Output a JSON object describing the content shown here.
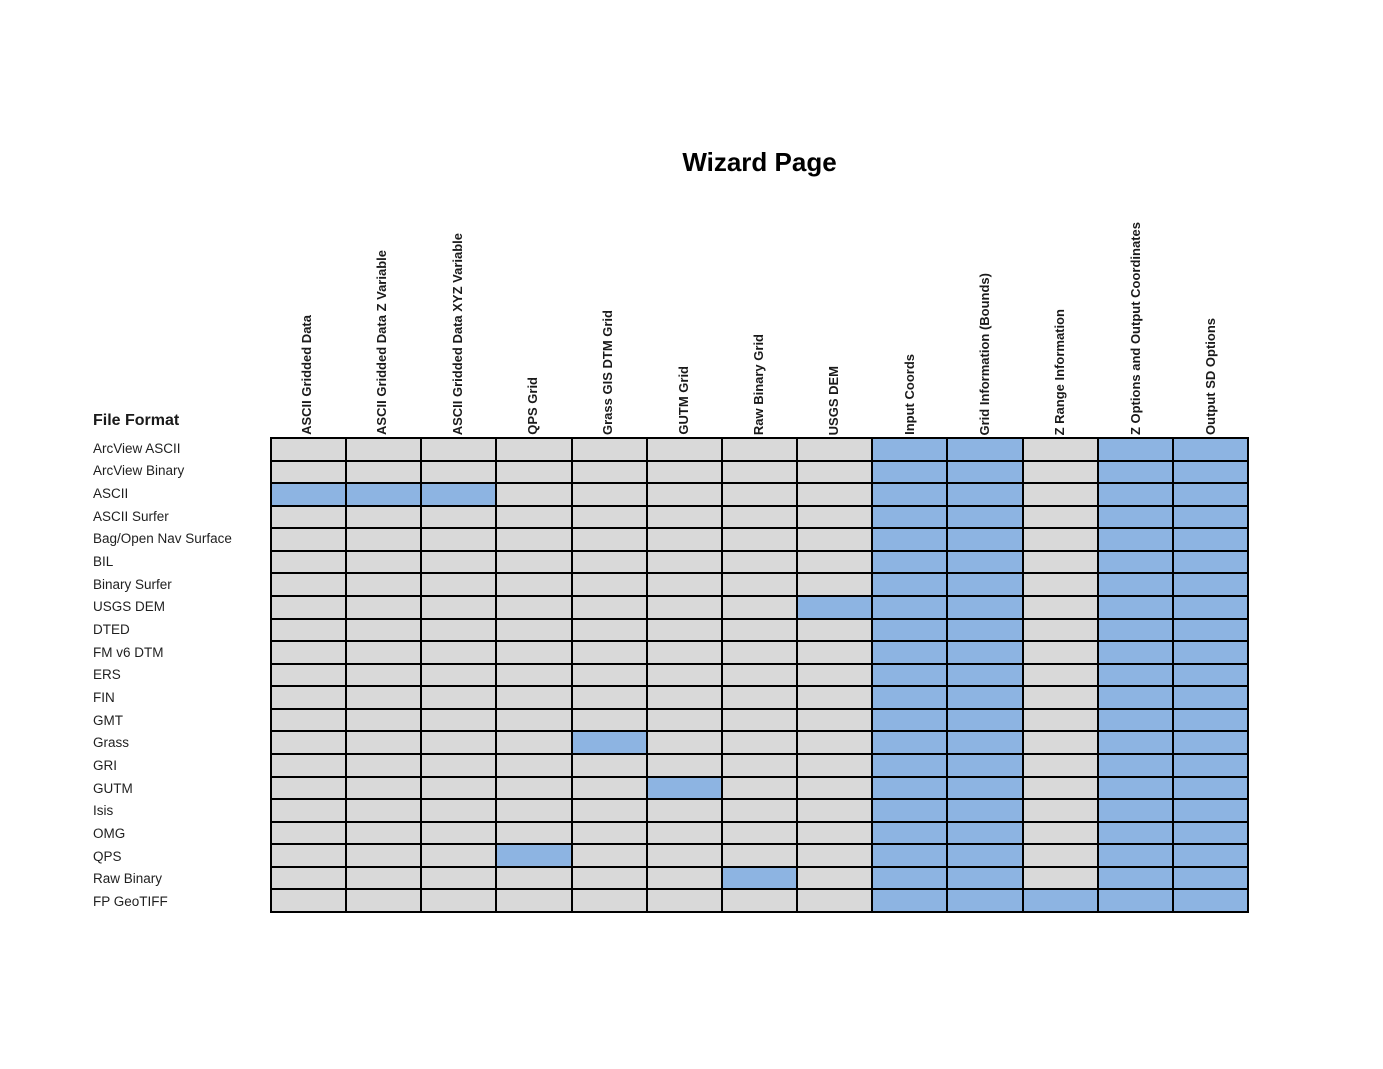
{
  "title": "Wizard Page",
  "row_header_label": "File Format",
  "colors": {
    "applicable_cell": "#8DB4E2",
    "not_applicable_cell": "#D9D9D9",
    "grid_border": "#000000",
    "text": "#1A1A1A",
    "background": "#FFFFFF"
  },
  "chart_data": {
    "type": "heatmap",
    "title": "Wizard Page",
    "xlabel": "",
    "ylabel": "File Format",
    "legend_position": "none",
    "grid": true,
    "x_categories": [
      "ASCII Gridded Data",
      "ASCII Gridded Data Z Variable",
      "ASCII Gridded Data XYZ Variable",
      "QPS Grid",
      "Grass GIS DTM Grid",
      "GUTM Grid",
      "Raw Binary Grid",
      "USGS DEM",
      "Input Coords",
      "Grid Information (Bounds)",
      "Z Range Information",
      "Z Options and Output Coordinates",
      "Output SD Options"
    ],
    "y_categories": [
      "ArcView ASCII",
      "ArcView Binary",
      "ASCII",
      "ASCII Surfer",
      "Bag/Open Nav Surface",
      "BIL",
      "Binary Surfer",
      "USGS DEM",
      "DTED",
      "FM v6 DTM",
      "ERS",
      "FIN",
      "GMT",
      "Grass",
      "GRI",
      "GUTM",
      "Isis",
      "OMG",
      "QPS",
      "Raw Binary",
      "FP GeoTIFF"
    ],
    "values": [
      [
        0,
        0,
        0,
        0,
        0,
        0,
        0,
        0,
        1,
        1,
        0,
        1,
        1
      ],
      [
        0,
        0,
        0,
        0,
        0,
        0,
        0,
        0,
        1,
        1,
        0,
        1,
        1
      ],
      [
        1,
        1,
        1,
        0,
        0,
        0,
        0,
        0,
        1,
        1,
        0,
        1,
        1
      ],
      [
        0,
        0,
        0,
        0,
        0,
        0,
        0,
        0,
        1,
        1,
        0,
        1,
        1
      ],
      [
        0,
        0,
        0,
        0,
        0,
        0,
        0,
        0,
        1,
        1,
        0,
        1,
        1
      ],
      [
        0,
        0,
        0,
        0,
        0,
        0,
        0,
        0,
        1,
        1,
        0,
        1,
        1
      ],
      [
        0,
        0,
        0,
        0,
        0,
        0,
        0,
        0,
        1,
        1,
        0,
        1,
        1
      ],
      [
        0,
        0,
        0,
        0,
        0,
        0,
        0,
        1,
        1,
        1,
        0,
        1,
        1
      ],
      [
        0,
        0,
        0,
        0,
        0,
        0,
        0,
        0,
        1,
        1,
        0,
        1,
        1
      ],
      [
        0,
        0,
        0,
        0,
        0,
        0,
        0,
        0,
        1,
        1,
        0,
        1,
        1
      ],
      [
        0,
        0,
        0,
        0,
        0,
        0,
        0,
        0,
        1,
        1,
        0,
        1,
        1
      ],
      [
        0,
        0,
        0,
        0,
        0,
        0,
        0,
        0,
        1,
        1,
        0,
        1,
        1
      ],
      [
        0,
        0,
        0,
        0,
        0,
        0,
        0,
        0,
        1,
        1,
        0,
        1,
        1
      ],
      [
        0,
        0,
        0,
        0,
        1,
        0,
        0,
        0,
        1,
        1,
        0,
        1,
        1
      ],
      [
        0,
        0,
        0,
        0,
        0,
        0,
        0,
        0,
        1,
        1,
        0,
        1,
        1
      ],
      [
        0,
        0,
        0,
        0,
        0,
        1,
        0,
        0,
        1,
        1,
        0,
        1,
        1
      ],
      [
        0,
        0,
        0,
        0,
        0,
        0,
        0,
        0,
        1,
        1,
        0,
        1,
        1
      ],
      [
        0,
        0,
        0,
        0,
        0,
        0,
        0,
        0,
        1,
        1,
        0,
        1,
        1
      ],
      [
        0,
        0,
        0,
        1,
        0,
        0,
        0,
        0,
        1,
        1,
        0,
        1,
        1
      ],
      [
        0,
        0,
        0,
        0,
        0,
        0,
        1,
        0,
        1,
        1,
        0,
        1,
        1
      ],
      [
        0,
        0,
        0,
        0,
        0,
        0,
        0,
        0,
        1,
        1,
        1,
        1,
        1
      ]
    ]
  }
}
